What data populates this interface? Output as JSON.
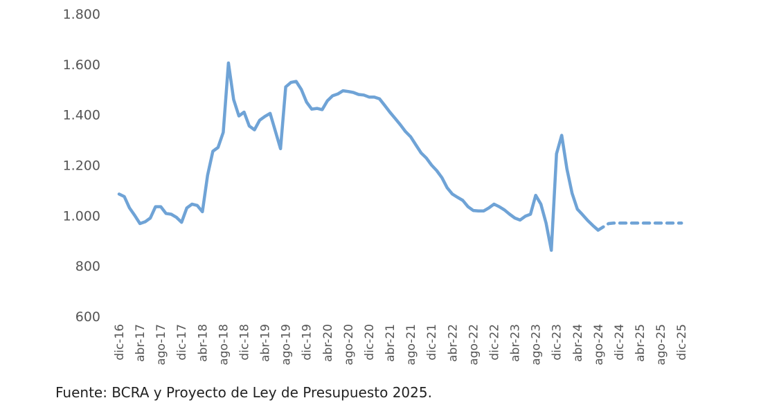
{
  "source": "Fuente: BCRA y Proyecto de Ley de Presupuesto 2025.",
  "colors": {
    "line": "#6fa3d6",
    "text": "#555555"
  },
  "chart_data": {
    "type": "line",
    "title": "",
    "xlabel": "",
    "ylabel": "",
    "ylim": [
      600,
      1800
    ],
    "yticks": [
      600,
      800,
      1000,
      1200,
      1400,
      1600,
      1800
    ],
    "ytick_labels": [
      "600",
      "800",
      "1.000",
      "1.200",
      "1.400",
      "1.600",
      "1.800"
    ],
    "grid": false,
    "legend": "none",
    "xtick_labels": [
      "dic-16",
      "abr-17",
      "ago-17",
      "dic-17",
      "abr-18",
      "ago-18",
      "dic-18",
      "abr-19",
      "ago-19",
      "dic-19",
      "abr-20",
      "ago-20",
      "dic-20",
      "abr-21",
      "ago-21",
      "dic-21",
      "abr-22",
      "ago-22",
      "dic-22",
      "abr-23",
      "ago-23",
      "dic-23",
      "abr-24",
      "ago-24",
      "dic-24",
      "abr-25",
      "ago-25",
      "dic-25"
    ],
    "series": [
      {
        "style": "solid",
        "values": [
          1085,
          1075,
          1030,
          1000,
          968,
          975,
          990,
          1035,
          1035,
          1008,
          1005,
          993,
          973,
          1030,
          1045,
          1040,
          1015,
          1160,
          1255,
          1270,
          1330,
          1605,
          1460,
          1395,
          1410,
          1355,
          1340,
          1378,
          1393,
          1405,
          1335,
          1265,
          1510,
          1528,
          1532,
          1500,
          1450,
          1422,
          1425,
          1420,
          1455,
          1475,
          1482,
          1495,
          1492,
          1488,
          1480,
          1478,
          1470,
          1470,
          1463,
          1437,
          1410,
          1385,
          1360,
          1333,
          1312,
          1280,
          1248,
          1228,
          1200,
          1178,
          1150,
          1110,
          1085,
          1072,
          1060,
          1035,
          1020,
          1018,
          1018,
          1030,
          1045,
          1035,
          1022,
          1005,
          990,
          982,
          997,
          1005,
          1080,
          1045,
          970,
          862,
          1245,
          1318,
          1185,
          1088,
          1025,
          1003,
          980,
          960,
          942
        ]
      },
      {
        "style": "dashed",
        "start_index": 92,
        "values": [
          942,
          955,
          968,
          970,
          970,
          970,
          970,
          970,
          970,
          970,
          970,
          970,
          970,
          970,
          970,
          970,
          970
        ]
      }
    ]
  }
}
